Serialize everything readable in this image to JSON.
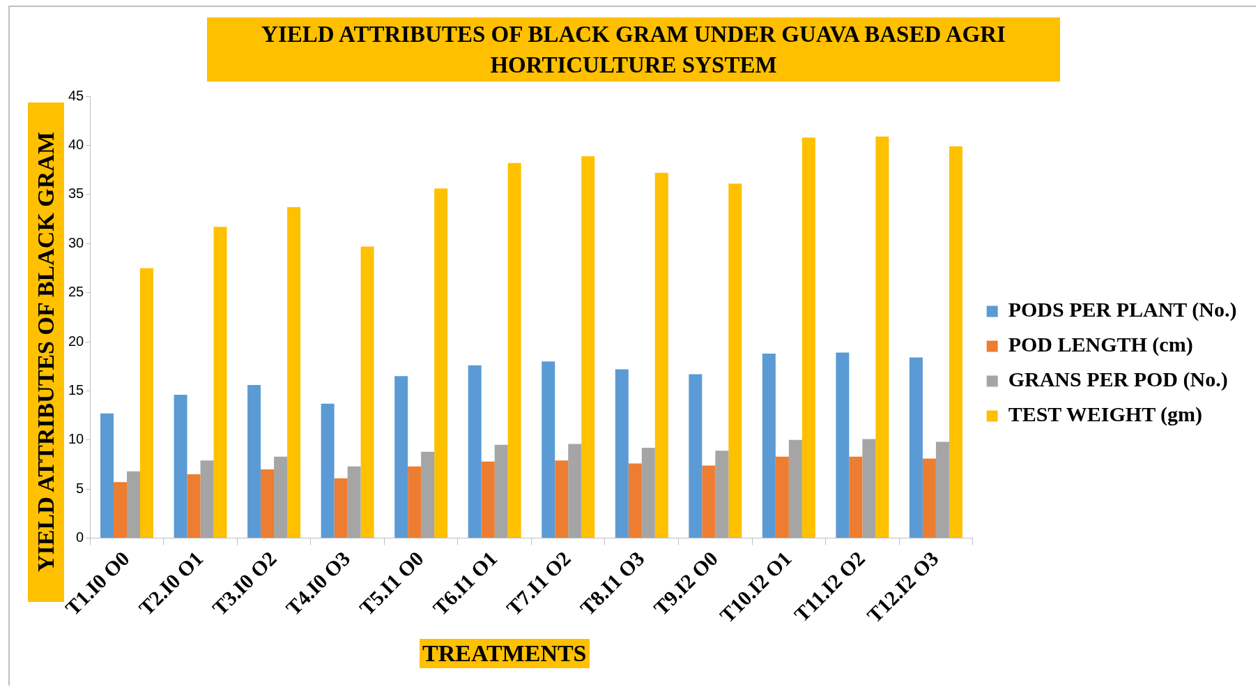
{
  "chart_data": {
    "type": "bar",
    "title": "YIELD ATTRIBUTES OF BLACK GRAM UNDER GUAVA BASED AGRI HORTICULTURE SYSTEM",
    "xlabel": "TREATMENTS",
    "ylabel": "YIELD ATTRIBUTES OF BLACK GRAM",
    "categories": [
      "T1.I0 O0",
      "T2.I0 O1",
      "T3.I0 O2",
      "T4.I0 O3",
      "T5.I1 O0",
      "T6.I1 O1",
      "T7.I1 O2",
      "T8.I1 O3",
      "T9.I2 O0",
      "T10.I2 O1",
      "T11.I2 O2",
      "T12.I2 O3"
    ],
    "series": [
      {
        "name": "PODS PER PLANT (No.)",
        "color": "#5b9bd5",
        "values": [
          12.7,
          14.6,
          15.6,
          13.7,
          16.5,
          17.6,
          18.0,
          17.2,
          16.7,
          18.8,
          18.9,
          18.4
        ]
      },
      {
        "name": "POD LENGTH (cm)",
        "color": "#ed7d31",
        "values": [
          5.7,
          6.5,
          7.0,
          6.1,
          7.3,
          7.8,
          7.9,
          7.6,
          7.4,
          8.3,
          8.3,
          8.1
        ]
      },
      {
        "name": "GRANS PER POD (No.)",
        "color": "#a5a5a5",
        "values": [
          6.8,
          7.9,
          8.3,
          7.3,
          8.8,
          9.5,
          9.6,
          9.2,
          8.9,
          10.0,
          10.1,
          9.8
        ]
      },
      {
        "name": "TEST WEIGHT (gm)",
        "color": "#ffc000",
        "values": [
          27.5,
          31.7,
          33.7,
          29.7,
          35.6,
          38.2,
          38.9,
          37.2,
          36.1,
          40.8,
          40.9,
          39.9
        ]
      }
    ],
    "ylim": [
      0,
      45
    ],
    "yticks": [
      0,
      5,
      10,
      15,
      20,
      25,
      30,
      35,
      40,
      45
    ],
    "grid": false,
    "legend": "right"
  }
}
